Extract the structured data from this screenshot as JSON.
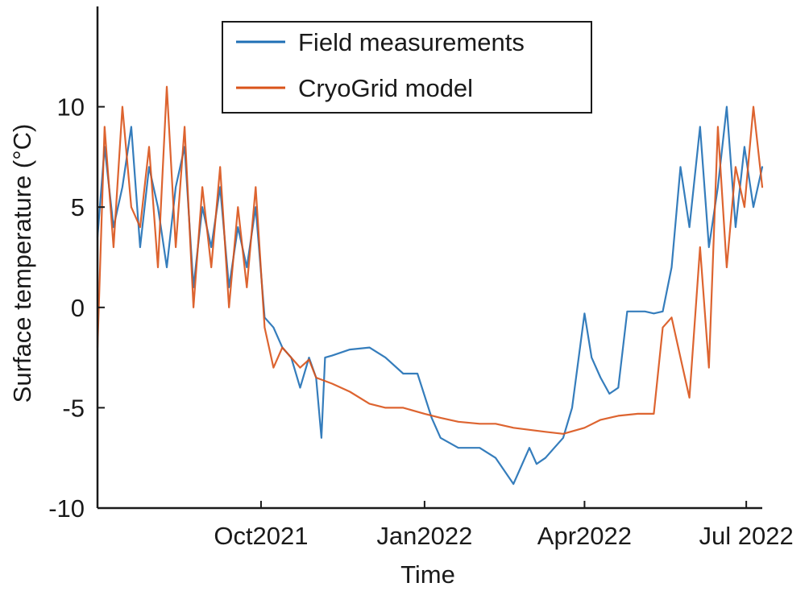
{
  "chart_data": {
    "type": "line",
    "title": "",
    "xlabel": "Time",
    "ylabel": "Surface temperature (°C)",
    "ylim": [
      -10,
      15
    ],
    "xlim": [
      "2021-07-01",
      "2022-07-10"
    ],
    "grid": false,
    "legend_position": "top-center",
    "y_ticks": [
      {
        "value": 10,
        "label": "10"
      },
      {
        "value": 5,
        "label": "5"
      },
      {
        "value": 0,
        "label": "0"
      },
      {
        "value": -5,
        "label": "-5"
      },
      {
        "value": -10,
        "label": "-10"
      }
    ],
    "x_ticks": [
      {
        "value": "2021-10-01",
        "label": "Oct2021"
      },
      {
        "value": "2022-01-01",
        "label": "Jan2022"
      },
      {
        "value": "2022-04-01",
        "label": "Apr2022"
      },
      {
        "value": "2022-07-01",
        "label": "Jul 2022"
      }
    ],
    "series": [
      {
        "name": "Field measurements",
        "color": "#1f6fb5",
        "x": [
          "2021-07-01",
          "2021-07-05",
          "2021-07-10",
          "2021-07-15",
          "2021-07-20",
          "2021-07-25",
          "2021-07-30",
          "2021-08-04",
          "2021-08-09",
          "2021-08-14",
          "2021-08-19",
          "2021-08-24",
          "2021-08-29",
          "2021-09-03",
          "2021-09-08",
          "2021-09-13",
          "2021-09-18",
          "2021-09-23",
          "2021-09-28",
          "2021-10-03",
          "2021-10-08",
          "2021-10-13",
          "2021-10-18",
          "2021-10-23",
          "2021-10-28",
          "2021-11-01",
          "2021-11-04",
          "2021-11-06",
          "2021-11-10",
          "2021-11-20",
          "2021-12-01",
          "2021-12-10",
          "2021-12-20",
          "2021-12-28",
          "2022-01-05",
          "2022-01-10",
          "2022-01-20",
          "2022-02-01",
          "2022-02-10",
          "2022-02-20",
          "2022-03-01",
          "2022-03-05",
          "2022-03-10",
          "2022-03-15",
          "2022-03-20",
          "2022-03-25",
          "2022-04-01",
          "2022-04-05",
          "2022-04-10",
          "2022-04-15",
          "2022-04-20",
          "2022-04-25",
          "2022-05-01",
          "2022-05-05",
          "2022-05-10",
          "2022-05-15",
          "2022-05-20",
          "2022-05-25",
          "2022-05-30",
          "2022-06-05",
          "2022-06-10",
          "2022-06-15",
          "2022-06-20",
          "2022-06-25",
          "2022-06-30",
          "2022-07-05",
          "2022-07-10"
        ],
        "y": [
          3.5,
          8,
          4,
          6,
          9,
          3,
          7,
          5,
          2,
          6,
          8,
          1,
          5,
          3,
          6,
          1,
          4,
          2,
          5,
          -0.5,
          -1,
          -2,
          -2.5,
          -4,
          -2.5,
          -3.5,
          -6.5,
          -2.5,
          -2.4,
          -2.1,
          -2.0,
          -2.5,
          -3.3,
          -3.3,
          -5.5,
          -6.5,
          -7.0,
          -7.0,
          -7.5,
          -8.8,
          -7.0,
          -7.8,
          -7.5,
          -7.0,
          -6.5,
          -5.0,
          -0.3,
          -2.5,
          -3.5,
          -4.3,
          -4.0,
          -0.2,
          -0.2,
          -0.2,
          -0.3,
          -0.2,
          2,
          7,
          4,
          9,
          3,
          6,
          10,
          4,
          8,
          5,
          7
        ],
        "line_width": 2.2
      },
      {
        "name": "CryoGrid model",
        "color": "#d95319",
        "x": [
          "2021-07-01",
          "2021-07-05",
          "2021-07-10",
          "2021-07-15",
          "2021-07-20",
          "2021-07-25",
          "2021-07-30",
          "2021-08-04",
          "2021-08-09",
          "2021-08-14",
          "2021-08-19",
          "2021-08-24",
          "2021-08-29",
          "2021-09-03",
          "2021-09-08",
          "2021-09-13",
          "2021-09-18",
          "2021-09-23",
          "2021-09-28",
          "2021-10-03",
          "2021-10-08",
          "2021-10-13",
          "2021-10-18",
          "2021-10-23",
          "2021-10-28",
          "2021-11-01",
          "2021-11-10",
          "2021-11-20",
          "2021-12-01",
          "2021-12-10",
          "2021-12-20",
          "2022-01-01",
          "2022-01-10",
          "2022-01-20",
          "2022-02-01",
          "2022-02-10",
          "2022-02-20",
          "2022-03-01",
          "2022-03-10",
          "2022-03-20",
          "2022-04-01",
          "2022-04-10",
          "2022-04-20",
          "2022-05-01",
          "2022-05-10",
          "2022-05-15",
          "2022-05-20",
          "2022-05-25",
          "2022-05-30",
          "2022-06-05",
          "2022-06-10",
          "2022-06-15",
          "2022-06-20",
          "2022-06-25",
          "2022-06-30",
          "2022-07-05",
          "2022-07-10"
        ],
        "y": [
          -2,
          9,
          3,
          10,
          5,
          4,
          8,
          2,
          11,
          3,
          9,
          0,
          6,
          2,
          7,
          0,
          5,
          1,
          6,
          -1,
          -3,
          -2,
          -2.5,
          -3,
          -2.6,
          -3.5,
          -3.8,
          -4.2,
          -4.8,
          -5.0,
          -5.0,
          -5.3,
          -5.5,
          -5.7,
          -5.8,
          -5.8,
          -6.0,
          -6.1,
          -6.2,
          -6.3,
          -6.0,
          -5.6,
          -5.4,
          -5.3,
          -5.3,
          -1,
          -0.5,
          -2.5,
          -4.5,
          3,
          -3,
          9,
          2,
          7,
          5,
          10,
          6
        ],
        "line_width": 2.2
      }
    ]
  }
}
